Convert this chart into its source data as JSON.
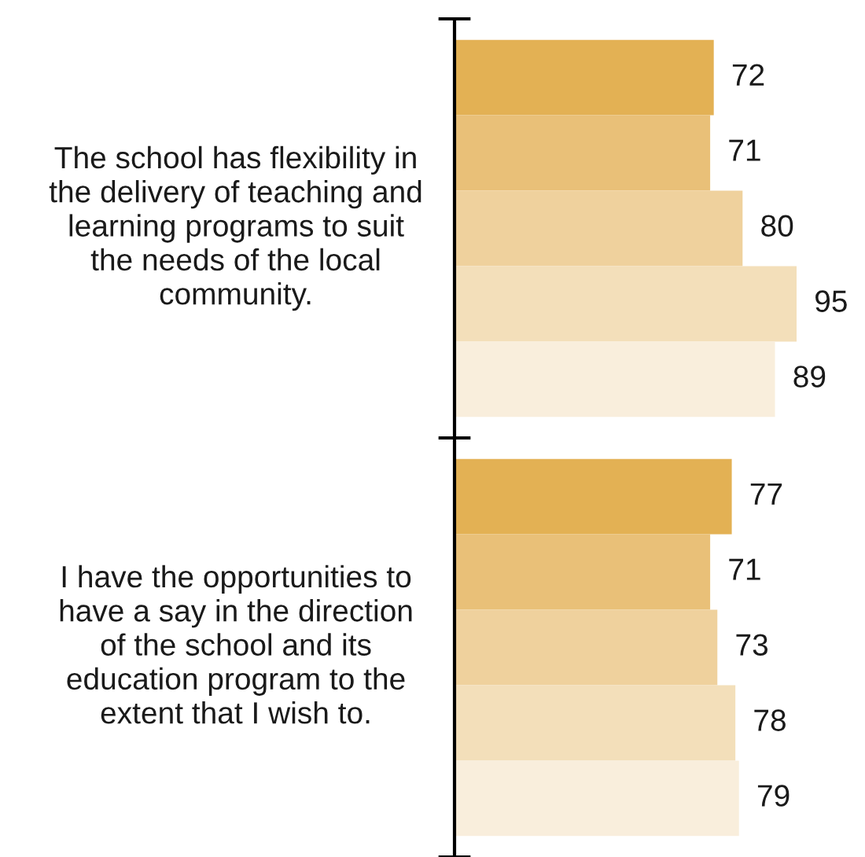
{
  "chart_data": {
    "type": "bar",
    "orientation": "horizontal",
    "data_labels": true,
    "legend": false,
    "categories": [
      "The school has flexibility in the delivery of teaching and learning programs to suit the needs of the local community.",
      "I have the opportunities to have a say in the direction of the school and its education program to the extent that I wish to."
    ],
    "series": [
      {
        "color": "#e3b154",
        "values": [
          72,
          77
        ]
      },
      {
        "color": "#e9c078",
        "values": [
          71,
          71
        ]
      },
      {
        "color": "#efd19d",
        "values": [
          80,
          73
        ]
      },
      {
        "color": "#f3dfba",
        "values": [
          95,
          78
        ]
      },
      {
        "color": "#f9eedc",
        "values": [
          89,
          79
        ]
      }
    ]
  }
}
